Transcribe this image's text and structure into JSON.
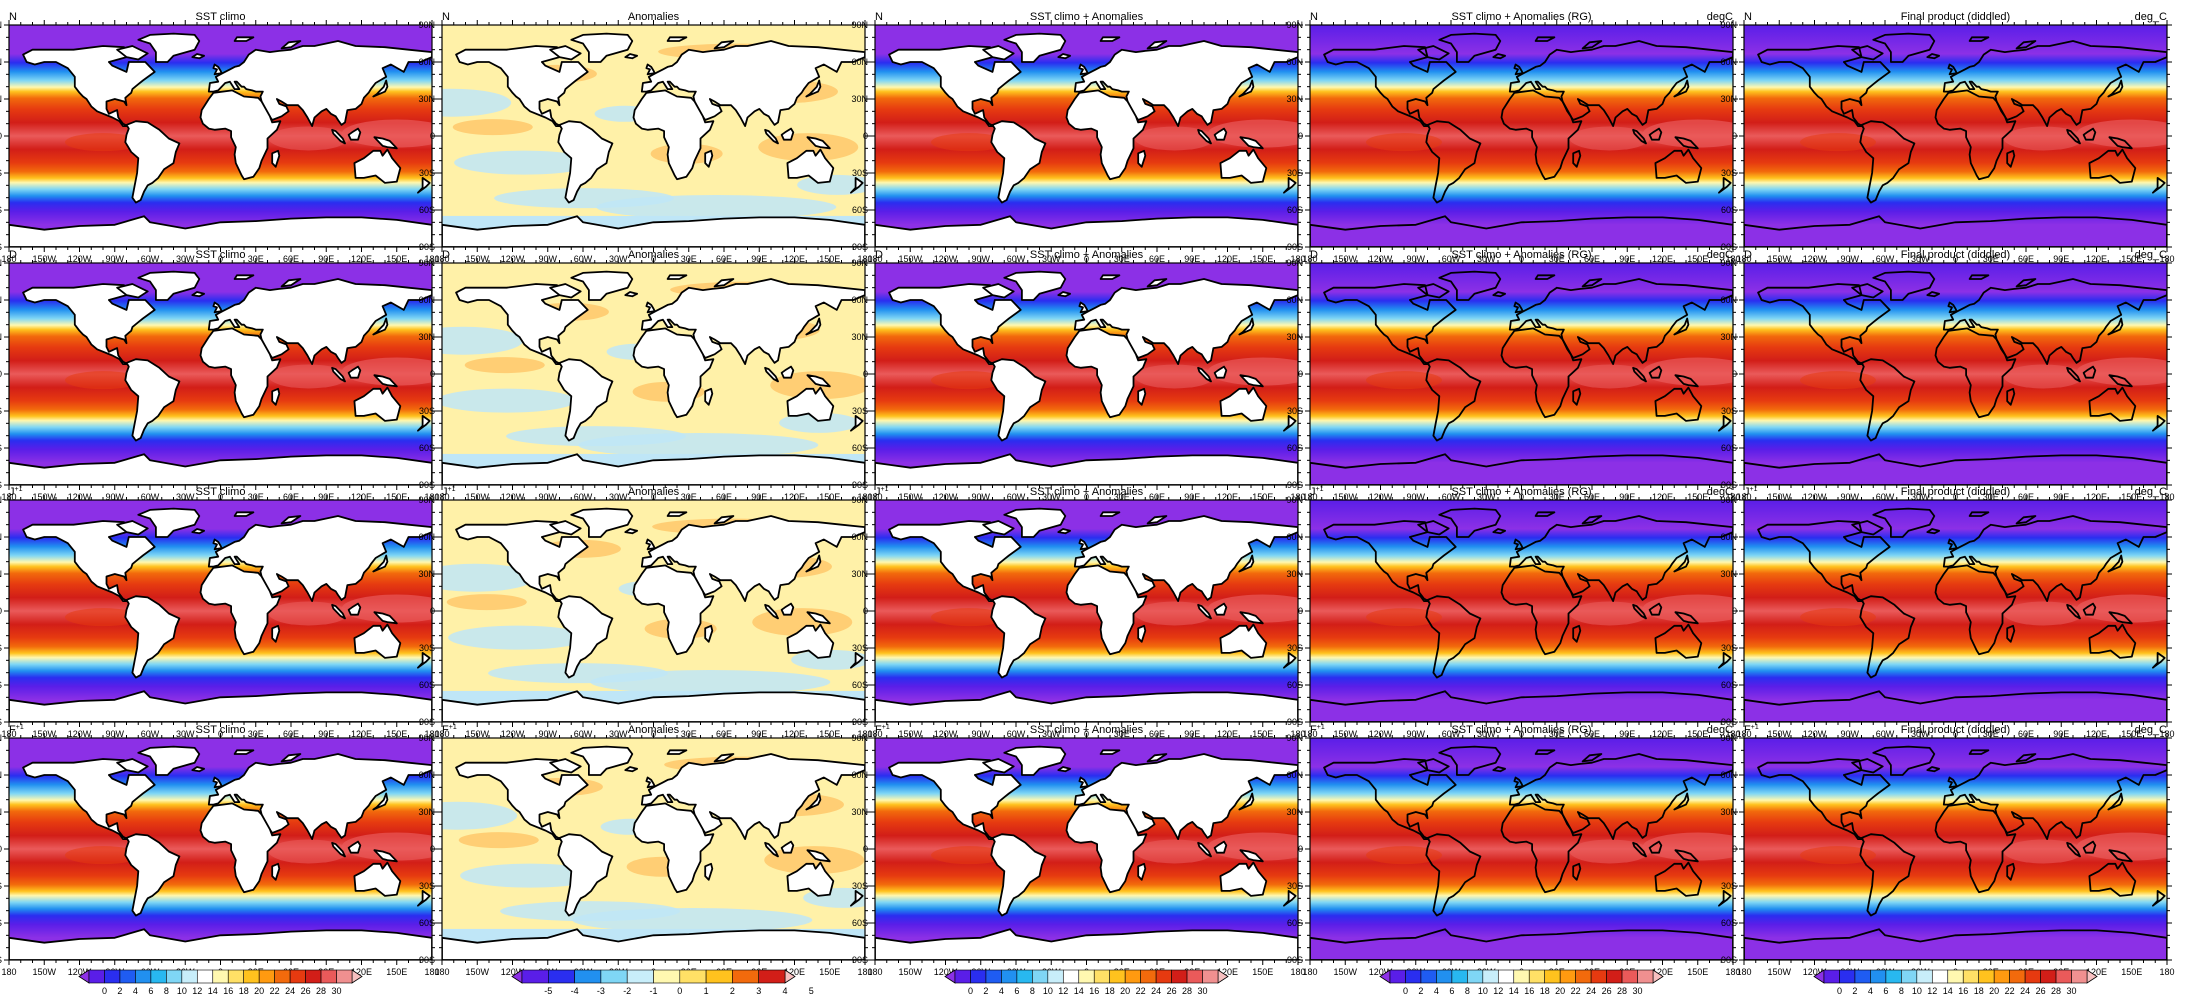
{
  "figure": {
    "columns": [
      {
        "title": "SST climo",
        "units": "",
        "colorbar": "sst"
      },
      {
        "title": "Anomalies",
        "units": "",
        "colorbar": "anom"
      },
      {
        "title": "SST climo + Anomalies",
        "units": "",
        "colorbar": "sst"
      },
      {
        "title": "SST climo + Anomalies (RG)",
        "units": "degC",
        "colorbar": "sst"
      },
      {
        "title": "Final product (diddled)",
        "units": "deg_C",
        "colorbar": "sst"
      }
    ],
    "rows": [
      {
        "label": "N",
        "sup": ""
      },
      {
        "label": "D",
        "sup": ""
      },
      {
        "label": "J",
        "sup": "+1"
      },
      {
        "label": "F",
        "sup": "+1"
      }
    ],
    "lat_ticks": [
      "90N",
      "60N",
      "30N",
      "0",
      "30S",
      "60S",
      "90S"
    ],
    "lon_ticks": [
      "180",
      "150W",
      "120W",
      "90W",
      "60W",
      "30W",
      "0",
      "30E",
      "60E",
      "90E",
      "120E",
      "150E",
      "180"
    ],
    "colorbars": {
      "sst": {
        "labels": [
          "0",
          "2",
          "4",
          "6",
          "8",
          "10",
          "12",
          "14",
          "16",
          "18",
          "20",
          "22",
          "24",
          "26",
          "28",
          "30"
        ],
        "colors": [
          "#8c30e6",
          "#5a1ee8",
          "#2a2ef0",
          "#1f5cf2",
          "#2190f0",
          "#28b8f0",
          "#7fd6f5",
          "#c8eefa",
          "#ffffff",
          "#fff8b0",
          "#ffe066",
          "#ffc21e",
          "#ff9a10",
          "#f26a0c",
          "#e63a10",
          "#d21e18",
          "#ea5a5a",
          "#f09090",
          "#f7c0c0"
        ]
      },
      "anom": {
        "labels": [
          "-5",
          "-4",
          "-3",
          "-2",
          "-1",
          "0",
          "1",
          "2",
          "3",
          "4",
          "5"
        ],
        "colors": [
          "#8c30e6",
          "#5a1ee8",
          "#2a2ef0",
          "#2190f0",
          "#7fd6f5",
          "#c8eefa",
          "#fff8b0",
          "#ffe066",
          "#ffc21e",
          "#f26a0c",
          "#d21e18",
          "#f7c0c0"
        ]
      }
    },
    "map_colors": {
      "land": "#ffffff",
      "coast": "#000000",
      "sst_bands": [
        "#8c30e6",
        "#5a1ee8",
        "#2a2ef0",
        "#2190f0",
        "#7fd6f5",
        "#fff8b0",
        "#ffc21e",
        "#f26a0c",
        "#e63a10",
        "#d21e18",
        "#ea5a5a"
      ],
      "anom_base": "#fff1a8",
      "anom_blue": "#bfe6f7",
      "anom_orange": "#ffc86b"
    }
  }
}
